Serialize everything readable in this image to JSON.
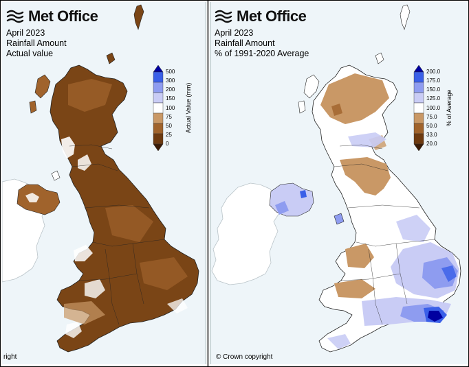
{
  "left_panel": {
    "logo": "Met Office",
    "title_lines": [
      "April 2023",
      "Rainfall Amount",
      "Actual value"
    ],
    "legend": {
      "axis_label": "Actual Value (mm)",
      "ticks": [
        "500",
        "300",
        "200",
        "150",
        "100",
        "75",
        "50",
        "25",
        "0"
      ],
      "colors": [
        "#0000a0",
        "#3a5fe8",
        "#8e9cf0",
        "#c9ccf5",
        "#ffffff",
        "#c99866",
        "#a0632c",
        "#6e3a10",
        "#3a1a05"
      ]
    },
    "copyright": "right"
  },
  "right_panel": {
    "logo": "Met Office",
    "title_lines": [
      "April 2023",
      "Rainfall Amount",
      "% of 1991-2020 Average"
    ],
    "legend": {
      "axis_label": "% of Average",
      "ticks": [
        "200.0",
        "175.0",
        "150.0",
        "125.0",
        "100.0",
        "75.0",
        "50.0",
        "33.0",
        "20.0"
      ],
      "colors": [
        "#0000a0",
        "#3a5fe8",
        "#8e9cf0",
        "#c9ccf5",
        "#ffffff",
        "#c99866",
        "#a0632c",
        "#6e3a10",
        "#3a1a05"
      ]
    },
    "copyright": "© Crown copyright"
  },
  "colors": {
    "sea": "#eef5f9",
    "land_neutral": "#ffffff",
    "dry_dark": "#7a4516",
    "dry_mid": "#a0632c",
    "dry_light": "#c99866",
    "wet_light": "#c9ccf5",
    "wet_mid": "#8e9cf0",
    "wet_dark": "#3a5fe8",
    "wet_extreme": "#0000a0"
  }
}
